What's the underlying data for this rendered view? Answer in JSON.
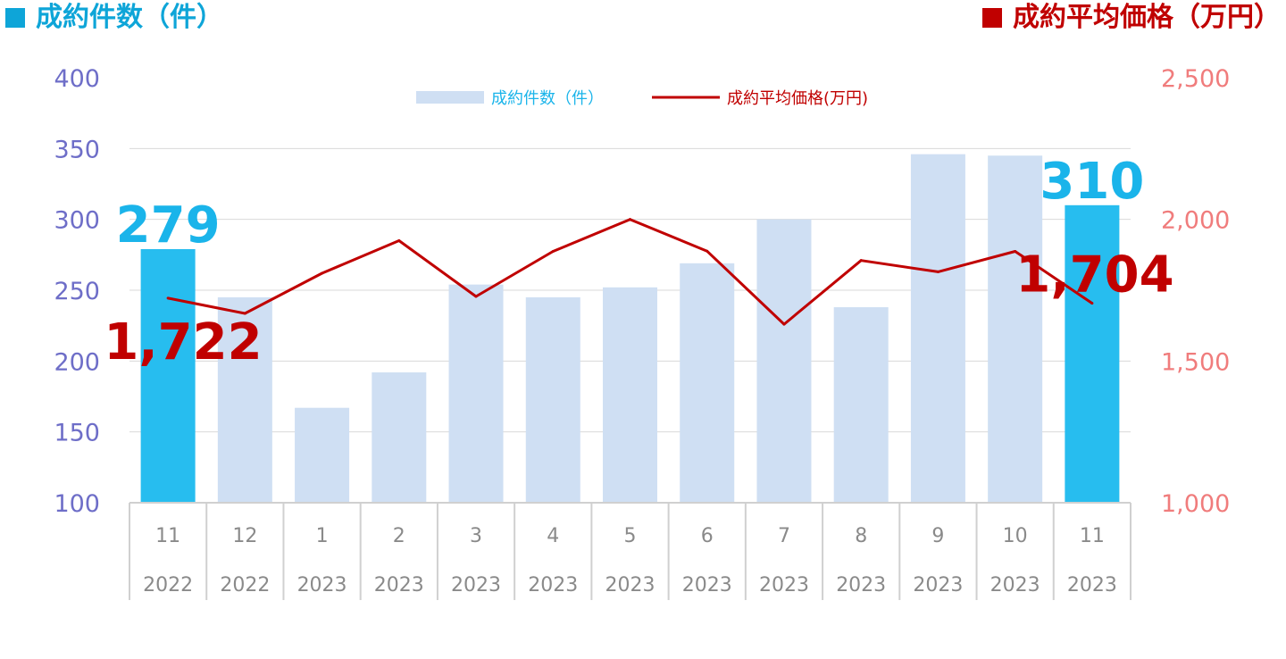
{
  "header": {
    "left_title": "成約件数（件）",
    "right_title": "成約平均価格（万円）"
  },
  "colors": {
    "bar_default": "#cfdff3",
    "bar_highlight": "#27bdef",
    "line": "#c00000",
    "left_axis": "#6e6ec8",
    "right_axis": "#f07c7c"
  },
  "chart_data": {
    "type": "bar",
    "categories": [
      {
        "month": "11",
        "year": "2022"
      },
      {
        "month": "12",
        "year": "2022"
      },
      {
        "month": "1",
        "year": "2023"
      },
      {
        "month": "2",
        "year": "2023"
      },
      {
        "month": "3",
        "year": "2023"
      },
      {
        "month": "4",
        "year": "2023"
      },
      {
        "month": "5",
        "year": "2023"
      },
      {
        "month": "6",
        "year": "2023"
      },
      {
        "month": "7",
        "year": "2023"
      },
      {
        "month": "8",
        "year": "2023"
      },
      {
        "month": "9",
        "year": "2023"
      },
      {
        "month": "10",
        "year": "2023"
      },
      {
        "month": "11",
        "year": "2023"
      }
    ],
    "series": [
      {
        "name": "成約件数（件）",
        "type": "bar",
        "axis": "left",
        "values": [
          279,
          245,
          167,
          192,
          254,
          245,
          252,
          269,
          300,
          238,
          346,
          345,
          310
        ],
        "highlight": [
          0,
          12
        ]
      },
      {
        "name": "成約平均価格(万円)",
        "type": "line",
        "axis": "right",
        "values": [
          1722,
          1668,
          1810,
          1925,
          1728,
          1887,
          2000,
          1888,
          1630,
          1855,
          1815,
          1887,
          1704
        ]
      }
    ],
    "y_left": {
      "min": 100,
      "max": 400,
      "ticks": [
        "100",
        "150",
        "200",
        "250",
        "300",
        "350",
        "400"
      ]
    },
    "y_right": {
      "min": 1000,
      "max": 2500,
      "ticks": [
        "1,000",
        "1,500",
        "2,000",
        "2,500"
      ]
    },
    "data_labels": [
      {
        "series": 0,
        "index": 0,
        "text": "279"
      },
      {
        "series": 0,
        "index": 12,
        "text": "310"
      },
      {
        "series": 1,
        "index": 0,
        "text": "1,722"
      },
      {
        "series": 1,
        "index": 12,
        "text": "1,704"
      }
    ],
    "legend": {
      "position": "top-center"
    },
    "grid": true
  }
}
